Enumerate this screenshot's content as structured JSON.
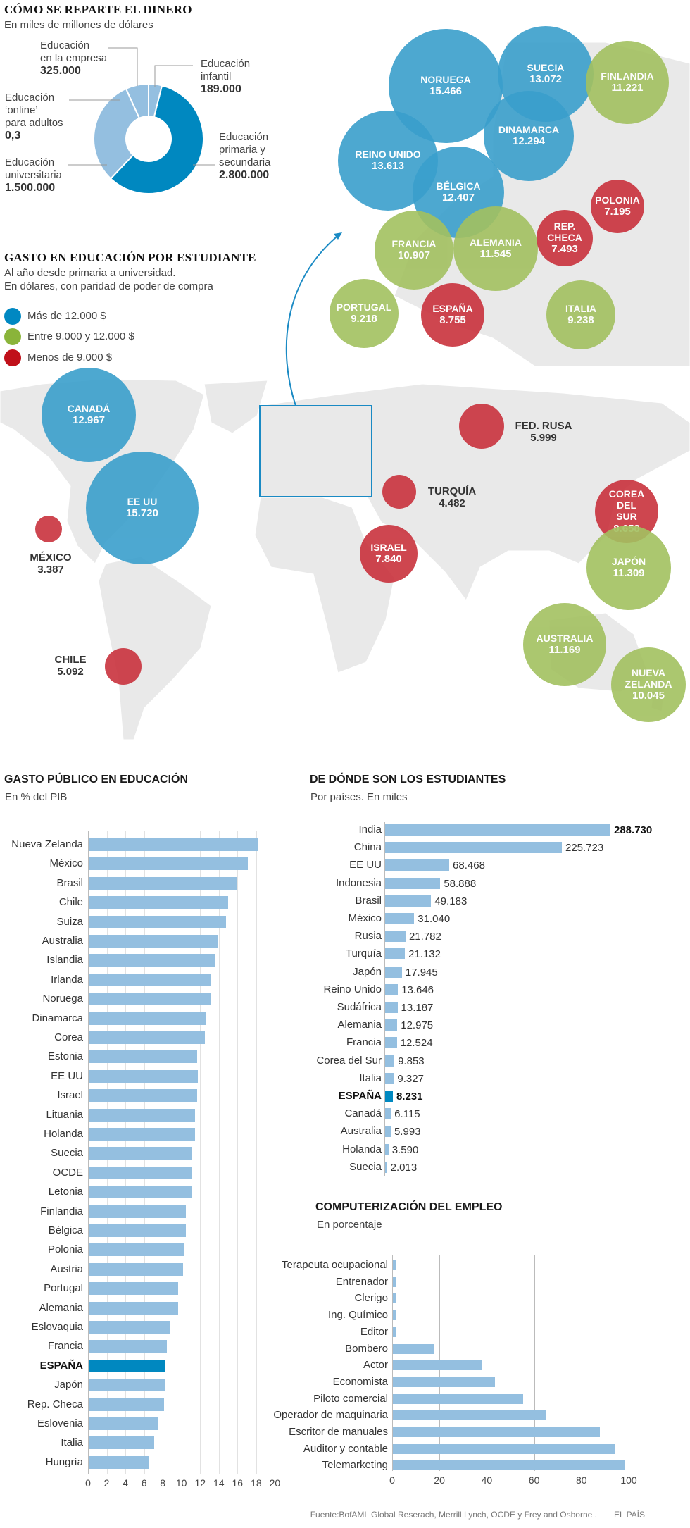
{
  "donut": {
    "title": "CÓMO SE REPARTE EL DINERO",
    "subtitle": "En miles de millones de dólares",
    "segments": [
      {
        "label": [
          "Educación",
          "infantil"
        ],
        "value_text": "189.000",
        "value": 189000,
        "color": "#94bfe0"
      },
      {
        "label": [
          "Educación",
          "primaria y",
          "secundaria"
        ],
        "value_text": "2.800.000",
        "value": 2800000,
        "color": "#0088c0"
      },
      {
        "label": [
          "Educación",
          "universitaria"
        ],
        "value_text": "1.500.000",
        "value": 1500000,
        "color": "#94bfe0"
      },
      {
        "label": [
          "Educación",
          "‘online’",
          "para adultos"
        ],
        "value_text": "0,3",
        "value": 0.3,
        "color": "#94bfe0"
      },
      {
        "label": [
          "Educación",
          "en la empresa"
        ],
        "value_text": "325.000",
        "value": 325000,
        "color": "#94bfe0"
      }
    ]
  },
  "map": {
    "title": "GASTO EN EDUCACIÓN POR ESTUDIANTE",
    "subtitle1": "Al año desde primaria a universidad.",
    "subtitle2": "En dólares, con paridad de poder de compra",
    "legend": [
      {
        "label": "Más de 12.000 $",
        "color": "#0088c2"
      },
      {
        "label": "Entre 9.000 y 12.000 $",
        "color": "#8ab43a"
      },
      {
        "label": "Menos de 9.000 $",
        "color": "#c0101a"
      }
    ],
    "colors": {
      "high": "#3a9fcc",
      "mid": "#a3c160",
      "low": "#c9323d"
    },
    "countries": [
      {
        "name": "NORUEGA",
        "value": "15.466",
        "cat": "high"
      },
      {
        "name": "SUECIA",
        "value": "13.072",
        "cat": "high"
      },
      {
        "name": "FINLANDIA",
        "value": "11.221",
        "cat": "mid"
      },
      {
        "name": "DINAMARCA",
        "value": "12.294",
        "cat": "high"
      },
      {
        "name": "REINO UNIDO",
        "value": "13.613",
        "cat": "high"
      },
      {
        "name": "BÉLGICA",
        "value": "12.407",
        "cat": "high"
      },
      {
        "name": "FRANCIA",
        "value": "10.907",
        "cat": "mid"
      },
      {
        "name": "ALEMANIA",
        "value": "11.545",
        "cat": "mid"
      },
      {
        "name": "REP. CHECA",
        "value": "7.493",
        "cat": "low"
      },
      {
        "name": "POLONIA",
        "value": "7.195",
        "cat": "low"
      },
      {
        "name": "PORTUGAL",
        "value": "9.218",
        "cat": "mid"
      },
      {
        "name": "ESPAÑA",
        "value": "8.755",
        "cat": "low"
      },
      {
        "name": "ITALIA",
        "value": "9.238",
        "cat": "mid"
      },
      {
        "name": "CANADÁ",
        "value": "12.967",
        "cat": "high"
      },
      {
        "name": "EE UU",
        "value": "15.720",
        "cat": "high"
      },
      {
        "name": "MÉXICO",
        "value": "3.387",
        "cat": "low"
      },
      {
        "name": "CHILE",
        "value": "5.092",
        "cat": "low"
      },
      {
        "name": "FED. RUSA",
        "value": "5.999",
        "cat": "low"
      },
      {
        "name": "TURQUÍA",
        "value": "4.482",
        "cat": "low"
      },
      {
        "name": "ISRAEL",
        "value": "7.840",
        "cat": "low"
      },
      {
        "name": "COREA DEL SUR",
        "value": "8.658",
        "cat": "low"
      },
      {
        "name": "JAPÓN",
        "value": "11.309",
        "cat": "mid"
      },
      {
        "name": "AUSTRALIA",
        "value": "11.169",
        "cat": "mid"
      },
      {
        "name": "NUEVA ZELANDA",
        "value": "10.045",
        "cat": "mid"
      }
    ]
  },
  "chart_data": [
    {
      "type": "bar",
      "title": "GASTO PÚBLICO EN EDUCACIÓN",
      "subtitle": "En % del PIB",
      "highlight": "ESPAÑA",
      "categories": [
        "Nueva Zelanda",
        "México",
        "Brasil",
        "Chile",
        "Suiza",
        "Australia",
        "Islandia",
        "Irlanda",
        "Noruega",
        "Dinamarca",
        "Corea",
        "Estonia",
        "EE UU",
        "Israel",
        "Lituania",
        "Holanda",
        "Suecia",
        "OCDE",
        "Letonia",
        "Finlandia",
        "Bélgica",
        "Polonia",
        "Austria",
        "Portugal",
        "Alemania",
        "Eslovaquia",
        "Francia",
        "ESPAÑA",
        "Japón",
        "Rep. Checa",
        "Eslovenia",
        "Italia",
        "Hungría"
      ],
      "values": [
        18.1,
        17.0,
        15.9,
        14.9,
        14.7,
        13.9,
        13.5,
        13.0,
        13.0,
        12.5,
        12.4,
        11.6,
        11.7,
        11.6,
        11.4,
        11.4,
        11.0,
        11.0,
        11.0,
        10.4,
        10.4,
        10.2,
        10.1,
        9.6,
        9.6,
        8.7,
        8.4,
        8.2,
        8.2,
        8.1,
        7.4,
        7.0,
        6.5
      ],
      "xlim": [
        0,
        20
      ],
      "ticks": [
        "0",
        "2",
        "4",
        "6",
        "8",
        "10",
        "12",
        "14",
        "16",
        "18",
        "20"
      ]
    },
    {
      "type": "bar",
      "title": "DE DÓNDE SON LOS ESTUDIANTES",
      "subtitle": "Por países. En miles",
      "highlight": "ESPAÑA",
      "categories": [
        "India",
        "China",
        "EE UU",
        "Indonesia",
        "Brasil",
        "México",
        "Rusia",
        "Turquía",
        "Japón",
        "Reino Unido",
        "Sudáfrica",
        "Alemania",
        "Francia",
        "Corea del Sur",
        "Italia",
        "ESPAÑA",
        "Canadá",
        "Australia",
        "Holanda",
        "Suecia"
      ],
      "values": [
        288.73,
        225.723,
        68.468,
        58.888,
        49.183,
        31.04,
        21.782,
        21.132,
        17.945,
        13.646,
        13.187,
        12.975,
        12.524,
        9.853,
        9.327,
        8.231,
        6.115,
        5.993,
        3.59,
        2.013
      ],
      "labels": [
        "288.730",
        "225.723",
        "68.468",
        "58.888",
        "49.183",
        "31.040",
        "21.782",
        "21.132",
        "17.945",
        "13.646",
        "13.187",
        "12.975",
        "12.524",
        "9.853",
        "9.327",
        "8.231",
        "6.115",
        "5.993",
        "3.590",
        "2.013"
      ],
      "broken_axis": [
        "India",
        "China"
      ]
    },
    {
      "type": "bar",
      "title": "COMPUTERIZACIÓN DEL EMPLEO",
      "subtitle": "En porcentaje",
      "categories": [
        "Terapeuta ocupacional",
        "Entrenador",
        "Clerigo",
        "Ing. Químico",
        "Editor",
        "Bombero",
        "Actor",
        "Economista",
        "Piloto comercial",
        "Operador de maquinaria",
        "Escritor de manuales",
        "Auditor y contable",
        "Telemarketing"
      ],
      "values": [
        1.5,
        1.5,
        1.5,
        1.5,
        1.5,
        17.4,
        37.4,
        43.3,
        55,
        64.6,
        87.4,
        93.8,
        98.3
      ],
      "xlim": [
        0,
        100
      ],
      "ticks": [
        "0",
        "20",
        "40",
        "60",
        "80",
        "100"
      ]
    }
  ],
  "footer": {
    "source": "Fuente:BofAML Global Reserach, Merrill Lynch, OCDE y Frey and Osborne  .",
    "brand": "EL PAÍS"
  }
}
